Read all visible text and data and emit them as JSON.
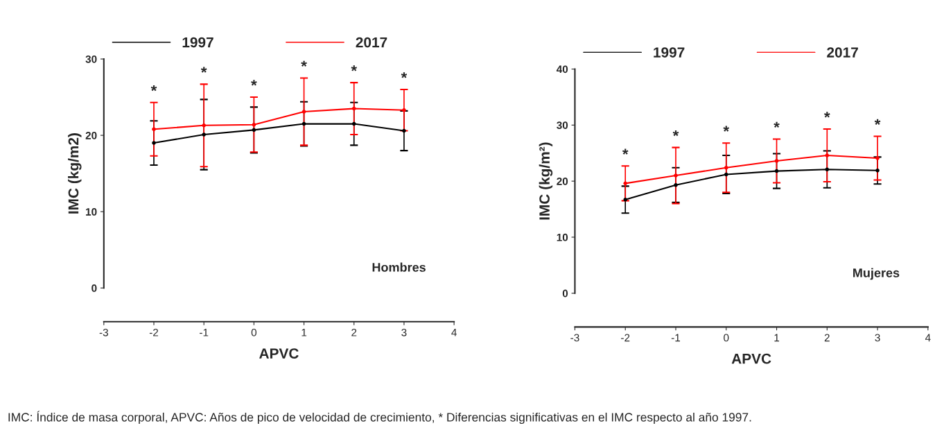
{
  "chart_data": [
    {
      "type": "line",
      "xlabel": "APVC",
      "ylabel": "IMC (kg/m2)",
      "x": [
        -2,
        -1,
        0,
        1,
        2,
        3
      ],
      "xlim": [
        -3,
        4
      ],
      "xticks": [
        -3,
        -2,
        -1,
        0,
        1,
        2,
        3,
        4
      ],
      "ylim": [
        0,
        30
      ],
      "yticks": [
        0,
        10,
        20,
        30
      ],
      "legend": "top left",
      "marker": "circle",
      "line_style": "solid",
      "grid": false,
      "series": [
        {
          "name": "1997",
          "color": "#000000",
          "values": [
            19.0,
            20.1,
            20.7,
            21.5,
            21.5,
            20.6
          ],
          "errors": [
            2.9,
            4.6,
            3.0,
            2.9,
            2.8,
            2.6
          ]
        },
        {
          "name": "2017",
          "color": "#ff0000",
          "values": [
            20.8,
            21.3,
            21.4,
            23.1,
            23.5,
            23.3
          ],
          "errors": [
            3.5,
            5.4,
            3.6,
            4.4,
            3.4,
            2.7
          ]
        }
      ],
      "annotations": [
        "Hombres",
        "*",
        "*",
        "*",
        "*",
        "*",
        "*"
      ]
    },
    {
      "type": "line",
      "xlabel": "APVC",
      "ylabel": "IMC (kg/m²)",
      "x": [
        -2,
        -1,
        0,
        1,
        2,
        3
      ],
      "xlim": [
        -3,
        4
      ],
      "xticks": [
        -3,
        -2,
        -1,
        0,
        1,
        2,
        3,
        4
      ],
      "ylim": [
        0,
        40
      ],
      "yticks": [
        0,
        10,
        20,
        30,
        40
      ],
      "legend": "top left",
      "marker": "circle",
      "line_style": "solid",
      "grid": false,
      "series": [
        {
          "name": "1997",
          "color": "#000000",
          "values": [
            16.7,
            19.3,
            21.2,
            21.8,
            22.1,
            21.9
          ],
          "errors": [
            2.4,
            3.1,
            3.4,
            3.1,
            3.3,
            2.4
          ]
        },
        {
          "name": "2017",
          "color": "#ff0000",
          "values": [
            19.6,
            21.0,
            22.4,
            23.6,
            24.6,
            24.1
          ],
          "errors": [
            3.1,
            5.0,
            4.4,
            3.9,
            4.7,
            3.9
          ]
        }
      ],
      "annotations": [
        "Mujeres",
        "*",
        "*",
        "*",
        "*",
        "*",
        "*",
        "IMC: Índice de masa corporal, APVC: Años de pico de velocidad de crecimiento, * Diferencias significativas en el IMC respecto al año 1997."
      ]
    }
  ]
}
